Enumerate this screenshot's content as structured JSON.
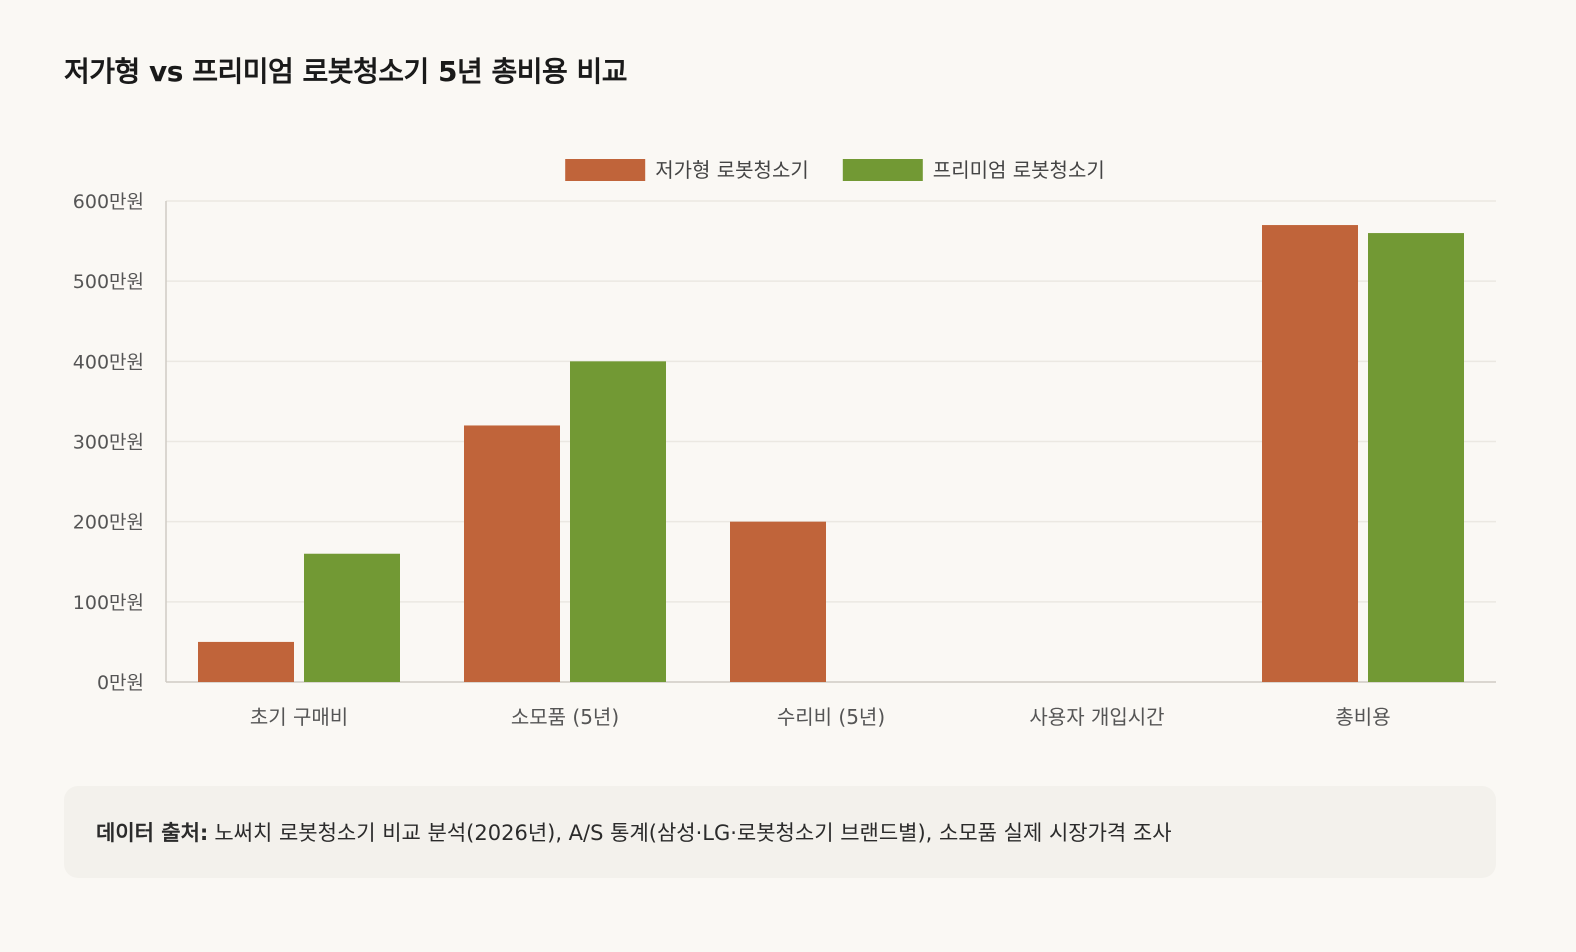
{
  "title": "저가형 vs 프리미엄 로봇청소기 5년 총비용 비교",
  "source": {
    "label": "데이터 출처:",
    "text": "노써치 로봇청소기 비교 분석(2026년), A/S 통계(삼성·LG·로봇청소기 브랜드별), 소모품 실제 시장가격 조사"
  },
  "chart_data": {
    "type": "bar",
    "categories": [
      "초기 구매비",
      "소모품 (5년)",
      "수리비 (5년)",
      "사용자 개입시간",
      "총비용"
    ],
    "series": [
      {
        "name": "저가형 로봇청소기",
        "color": "#c0643a",
        "values": [
          50,
          320,
          200,
          0,
          570
        ]
      },
      {
        "name": "프리미엄 로봇청소기",
        "color": "#729934",
        "values": [
          160,
          400,
          0,
          0,
          560
        ]
      }
    ],
    "yticks": [
      0,
      100,
      200,
      300,
      400,
      500,
      600
    ],
    "ytick_suffix": "만원",
    "ylim": [
      0,
      600
    ],
    "xlabel": "",
    "ylabel": "",
    "grid": true,
    "legend_position": "top-center",
    "grid_color": "#ebe8e2",
    "axis_color": "#cfcbc4",
    "text_color": "#555555"
  }
}
